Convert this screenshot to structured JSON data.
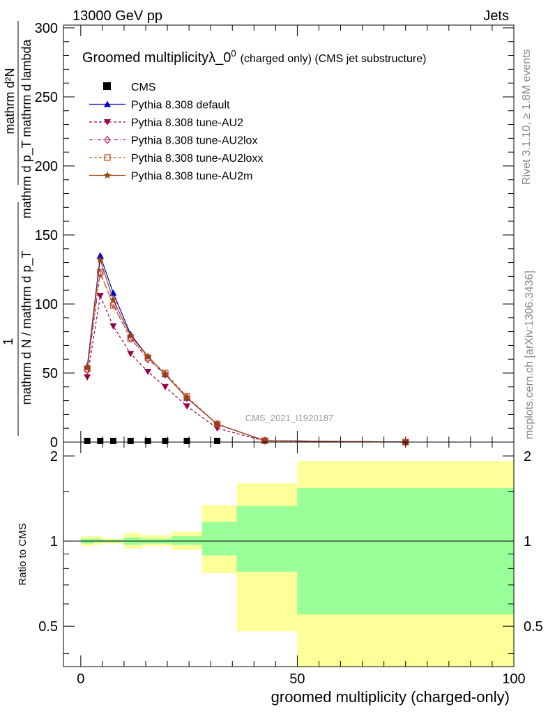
{
  "header": {
    "left": "13000 GeV pp",
    "right": "Jets"
  },
  "side_text": {
    "rivet": "Rivet 3.1.10, ≥ 1.8M events",
    "mcplots": "mcplots.cern.ch [arXiv:1306.3436]"
  },
  "chart_data": [
    {
      "type": "line",
      "title_main": "Groomed multiplicityλ_0",
      "title_sup": "0",
      "title_tail": "(charged only) (CMS jet substructure)",
      "ylabel_num": "mathrm d²N",
      "ylabel_den": "mathrm d p_T mathrm d lambda",
      "ylabel_one": "1",
      "ylabel_norm": "mathrm d N / mathrm d p_T",
      "watermark": "CMS_2021_I1920187",
      "xlim": [
        -4,
        100
      ],
      "ylim": [
        0,
        302
      ],
      "yticks": [
        0,
        50,
        100,
        150,
        200,
        250,
        300
      ],
      "x": [
        1.5,
        4.5,
        7.5,
        11.5,
        15.5,
        19.5,
        24.5,
        31.5,
        42.5,
        75
      ],
      "series": [
        {
          "name": "CMS",
          "style": "data",
          "color": "#000000",
          "values": [
            0.3,
            0.3,
            0.3,
            0.3,
            0.3,
            0.3,
            0.3,
            0.3,
            null,
            null
          ]
        },
        {
          "name": "Pythia 8.308 default",
          "style": "line",
          "marker": "triangle-up",
          "color": "#0000cc",
          "values": [
            55,
            135,
            108,
            78,
            62,
            49,
            32,
            13,
            1,
            0
          ]
        },
        {
          "name": "Pythia 8.308 tune-AU2",
          "style": "dashed",
          "marker": "triangle-down",
          "color": "#990044",
          "values": [
            47,
            106,
            84,
            64,
            51,
            40,
            26,
            10,
            0.8,
            0
          ]
        },
        {
          "name": "Pythia 8.308 tune-AU2lox",
          "style": "dashdot",
          "marker": "diamond-open",
          "color": "#aa2266",
          "values": [
            52,
            122,
            100,
            75,
            60,
            49,
            32,
            13,
            1,
            0
          ]
        },
        {
          "name": "Pythia 8.308 tune-AU2loxx",
          "style": "dashed",
          "marker": "square-open",
          "color": "#cc5522",
          "values": [
            53,
            123,
            99,
            75,
            61,
            50,
            33,
            13,
            1,
            0
          ]
        },
        {
          "name": "Pythia 8.308 tune-AU2m",
          "style": "line",
          "marker": "star",
          "color": "#994411",
          "values": [
            54,
            132,
            103,
            77,
            62,
            49,
            32,
            13,
            1,
            0
          ]
        }
      ]
    },
    {
      "type": "area",
      "ylabel": "Ratio to CMS",
      "xlabel": "groomed multiplicity (charged-only)",
      "xlim": [
        -4,
        100
      ],
      "xticks": [
        0,
        50,
        100
      ],
      "ylim": [
        0.36,
        2.24
      ],
      "yticks": [
        0.5,
        1,
        2
      ],
      "reference_line": 1,
      "bins": [
        {
          "lo": 0,
          "hi": 3,
          "stat": [
            0.98,
            1.02
          ],
          "total": [
            0.96,
            1.04
          ]
        },
        {
          "lo": 3,
          "hi": 5,
          "stat": [
            0.99,
            1.02
          ],
          "total": [
            0.97,
            1.04
          ]
        },
        {
          "lo": 5,
          "hi": 10,
          "stat": [
            0.99,
            1.01
          ],
          "total": [
            0.98,
            1.02
          ]
        },
        {
          "lo": 10,
          "hi": 14,
          "stat": [
            0.97,
            1.03
          ],
          "total": [
            0.94,
            1.07
          ]
        },
        {
          "lo": 14,
          "hi": 21,
          "stat": [
            0.98,
            1.02
          ],
          "total": [
            0.96,
            1.05
          ]
        },
        {
          "lo": 21,
          "hi": 28,
          "stat": [
            0.97,
            1.04
          ],
          "total": [
            0.93,
            1.08
          ]
        },
        {
          "lo": 28,
          "hi": 36,
          "stat": [
            0.89,
            1.17
          ],
          "total": [
            0.77,
            1.34
          ]
        },
        {
          "lo": 36,
          "hi": 50,
          "stat": [
            0.78,
            1.33
          ],
          "total": [
            0.48,
            1.6
          ]
        },
        {
          "lo": 50,
          "hi": 100,
          "stat": [
            0.55,
            1.54
          ],
          "total": [
            0.36,
            1.92
          ]
        }
      ],
      "colors": {
        "stat": "#99ff99",
        "total": "#ffff99"
      }
    }
  ]
}
